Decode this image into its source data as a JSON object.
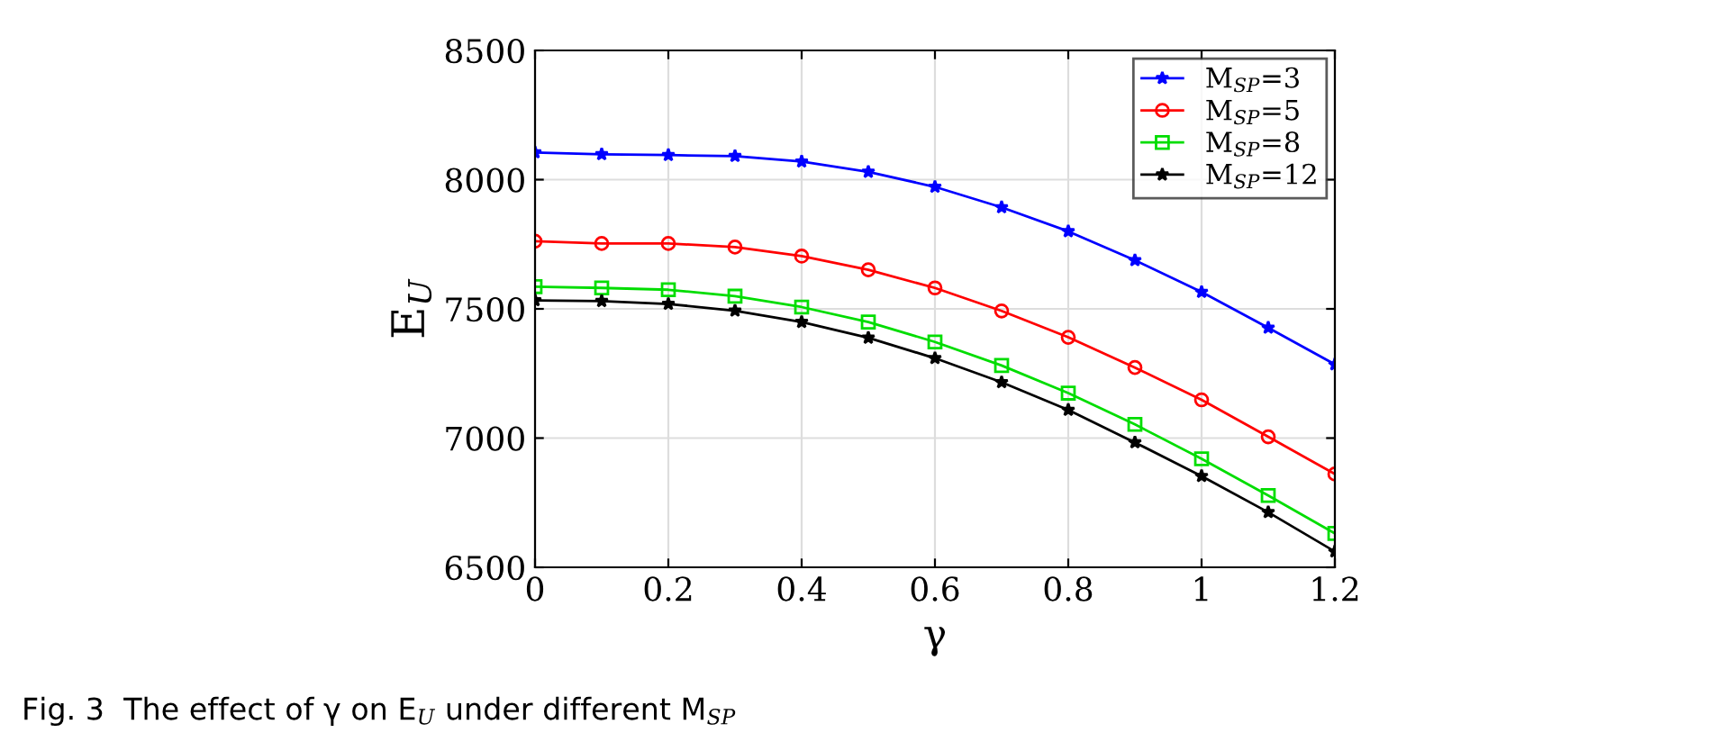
{
  "chart_data": {
    "type": "line",
    "xlabel": "γ",
    "ylabel": "E$_{U}$",
    "x": [
      0,
      0.1,
      0.2,
      0.3,
      0.4,
      0.5,
      0.6,
      0.7,
      0.8,
      0.9,
      1.0,
      1.1,
      1.2
    ],
    "series": [
      {
        "name": "M$_{SP}$=3",
        "color": "#0000ff",
        "marker": "star",
        "values": [
          8105,
          8098,
          8095,
          8091,
          8070,
          8030,
          7972,
          7893,
          7800,
          7688,
          7565,
          7427,
          7285
        ]
      },
      {
        "name": "M$_{SP}$=5",
        "color": "#ff0000",
        "marker": "circle",
        "values": [
          7762,
          7753,
          7753,
          7739,
          7704,
          7651,
          7581,
          7492,
          7390,
          7273,
          7148,
          7005,
          6861
        ]
      },
      {
        "name": "M$_{SP}$=8",
        "color": "#00dd00",
        "marker": "square",
        "values": [
          7586,
          7581,
          7574,
          7549,
          7507,
          7449,
          7372,
          7281,
          7174,
          7053,
          6920,
          6778,
          6631
        ]
      },
      {
        "name": "M$_{SP}$=12",
        "color": "#000000",
        "marker": "star",
        "values": [
          7533,
          7530,
          7519,
          7493,
          7449,
          7388,
          7309,
          7216,
          7109,
          6983,
          6853,
          6713,
          6561
        ]
      }
    ],
    "xlim": [
      0,
      1.2
    ],
    "xticks": [
      0,
      0.2,
      0.4,
      0.6,
      0.8,
      1,
      1.2
    ],
    "ylim": [
      6500,
      8500
    ],
    "yticks": [
      6500,
      7000,
      7500,
      8000,
      8500
    ],
    "grid": true,
    "legend": "top right",
    "line_style": "solid",
    "annotations": [
      "Fig. 3  The effect of γ on E$_{U}$ under different M$_{SP}$"
    ]
  }
}
